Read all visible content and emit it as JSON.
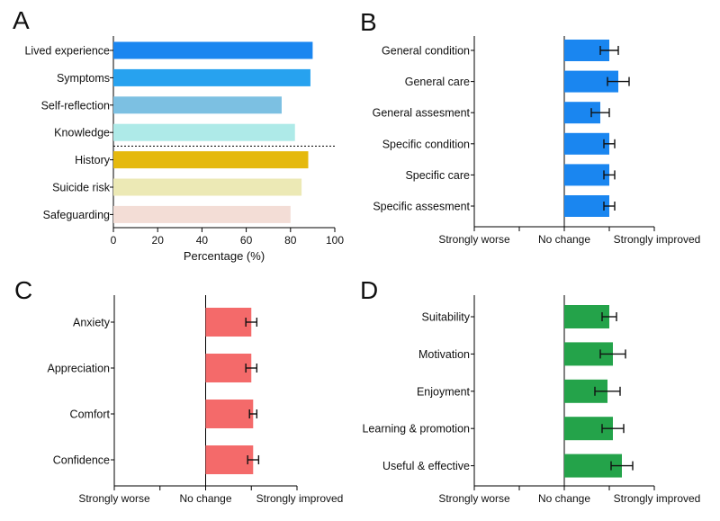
{
  "chart_data": [
    {
      "panel": "A",
      "type": "bar",
      "orientation": "horizontal",
      "categories": [
        "Lived experience",
        "Symptoms",
        "Self-reflection",
        "Knowledge",
        "History",
        "Suicide risk",
        "Safeguarding"
      ],
      "values": [
        90,
        89,
        76,
        82,
        88,
        85,
        80
      ],
      "colors": [
        "#1a86f0",
        "#27a2ef",
        "#7cc0e2",
        "#aeeae8",
        "#e5b90e",
        "#ece9b5",
        "#f3ddd6"
      ],
      "divider_after_index": 3,
      "xlabel": "Percentage (%)",
      "xlim": [
        0,
        100
      ],
      "xticks": [
        "0",
        "20",
        "40",
        "60",
        "80",
        "100"
      ],
      "xtick_values": [
        0,
        20,
        40,
        60,
        80,
        100
      ]
    },
    {
      "panel": "B",
      "type": "bar",
      "orientation": "horizontal",
      "categories": [
        "General condition",
        "General care",
        "General assesment",
        "Specific condition",
        "Specific care",
        "Specific assesment"
      ],
      "values": [
        25,
        30,
        20,
        25,
        25,
        25
      ],
      "errors": [
        5,
        6,
        5,
        3,
        3,
        3
      ],
      "color": "#1a86f0",
      "xlim": [
        -50,
        50
      ],
      "xtick_labels": [
        "Strongly worse",
        "No change",
        "Strongly improved"
      ]
    },
    {
      "panel": "C",
      "type": "bar",
      "orientation": "horizontal",
      "categories": [
        "Anxiety",
        "Appreciation",
        "Comfort",
        "Confidence"
      ],
      "values": [
        25,
        25,
        26,
        26
      ],
      "errors": [
        3,
        3,
        2,
        3
      ],
      "color": "#f46a6a",
      "xlim": [
        -50,
        50
      ],
      "xtick_labels": [
        "Strongly worse",
        "No change",
        "Strongly improved"
      ]
    },
    {
      "panel": "D",
      "type": "bar",
      "orientation": "horizontal",
      "categories": [
        "Suitability",
        "Motivation",
        "Enjoyment",
        "Learning & promotion",
        "Useful & effective"
      ],
      "values": [
        25,
        27,
        24,
        27,
        32
      ],
      "errors": [
        4,
        7,
        7,
        6,
        6
      ],
      "color": "#24a34a",
      "xlim": [
        -50,
        50
      ],
      "xtick_labels": [
        "Strongly worse",
        "No change",
        "Strongly improved"
      ]
    }
  ]
}
